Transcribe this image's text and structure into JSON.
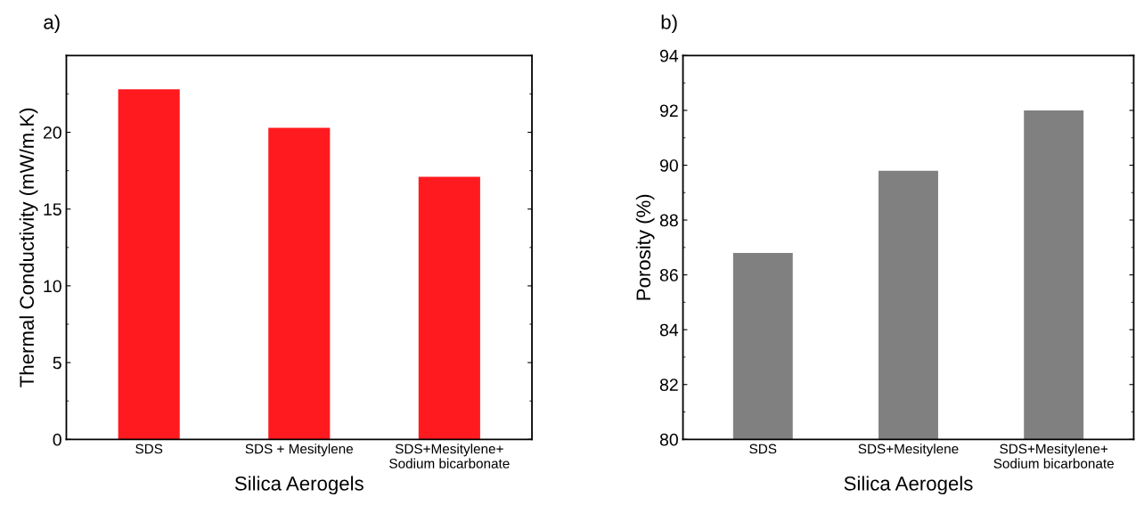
{
  "chart_data": [
    {
      "type": "bar",
      "title": "a)",
      "xlabel": "Silica Aerogels",
      "ylabel": "Thermal Conductivity (mW/m.K)",
      "categories": [
        "SDS",
        "SDS + Mesitylene",
        "SDS+Mesitylene+\nSodium bicarbonate"
      ],
      "values": [
        22.8,
        20.3,
        17.1
      ],
      "color": "#ff1a1f",
      "ylim": [
        0,
        25
      ],
      "yticks": [
        0,
        5,
        10,
        15,
        20
      ],
      "grid": false,
      "legend": false
    },
    {
      "type": "bar",
      "title": "b)",
      "xlabel": "Silica Aerogels",
      "ylabel": "Porosity (%)",
      "categories": [
        "SDS",
        "SDS+Mesitylene",
        "SDS+Mesitylene+\nSodium bicarbonate"
      ],
      "values": [
        86.8,
        89.8,
        92.0
      ],
      "color": "#808080",
      "ylim": [
        80,
        94
      ],
      "yticks": [
        80,
        82,
        84,
        86,
        88,
        90,
        92,
        94
      ],
      "grid": false,
      "legend": false
    }
  ]
}
